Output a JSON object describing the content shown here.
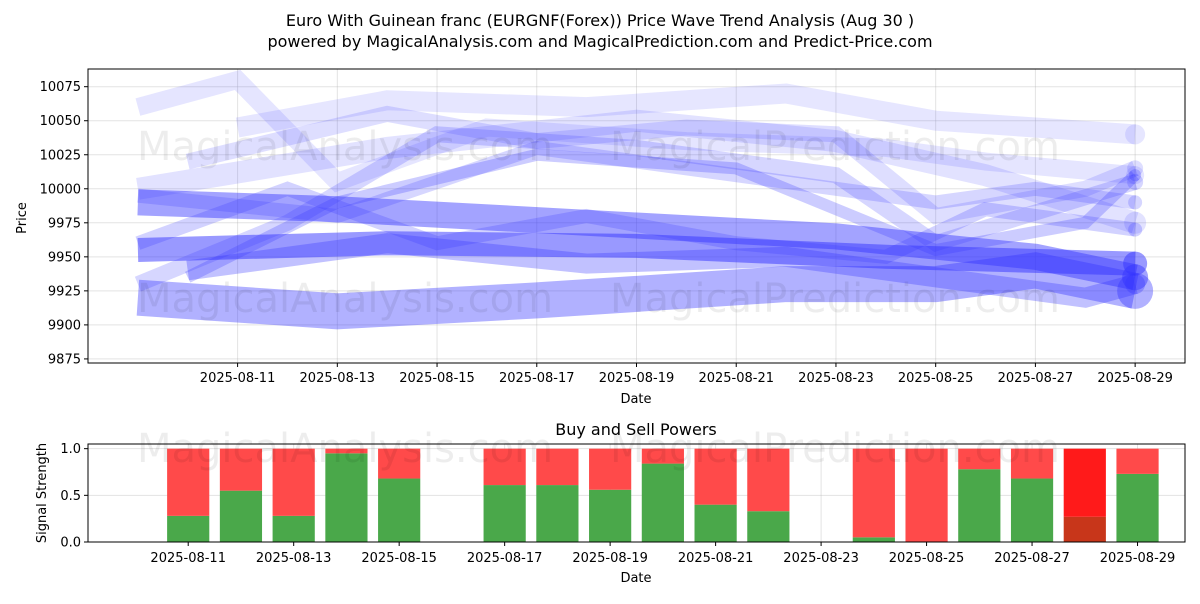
{
  "header": {
    "title_line1": "Euro With Guinean franc (EURGNF(Forex)) Price Wave Trend Analysis (Aug 30 )",
    "title_line2": "powered by MagicalAnalysis.com and MagicalPrediction.com and Predict-Price.com"
  },
  "watermarks": {
    "left": "MagicalAnalysis.com",
    "right": "MagicalPrediction.com"
  },
  "colors": {
    "wave": "#3333ff",
    "buy": "#4aa84a",
    "sell": "#ff4a4a",
    "sell_strong": "#ff1a1a",
    "buy_strong": "#c8361a"
  },
  "chart_data": [
    {
      "type": "line",
      "title": "",
      "xlabel": "Date",
      "ylabel": "Price",
      "x_ticks": [
        "2025-08-11",
        "2025-08-13",
        "2025-08-15",
        "2025-08-17",
        "2025-08-19",
        "2025-08-21",
        "2025-08-23",
        "2025-08-25",
        "2025-08-27",
        "2025-08-29"
      ],
      "y_ticks": [
        9875,
        9900,
        9925,
        9950,
        9975,
        10000,
        10025,
        10050,
        10075
      ],
      "xlim": [
        "2025-08-08",
        "2025-08-30"
      ],
      "ylim": [
        9872,
        10088
      ],
      "grid": true,
      "series": [
        {
          "x": [
            "2025-08-09",
            "2025-08-13",
            "2025-08-17",
            "2025-08-22",
            "2025-08-25",
            "2025-08-27",
            "2025-08-29"
          ],
          "y": [
            9920,
            9910,
            9918,
            9930,
            9930,
            9940,
            9925
          ],
          "opacity": 0.38,
          "width": 36
        },
        {
          "x": [
            "2025-08-09",
            "2025-08-14",
            "2025-08-19",
            "2025-08-24",
            "2025-08-29"
          ],
          "y": [
            9955,
            9960,
            9958,
            9950,
            9945
          ],
          "opacity": 0.5,
          "width": 24
        },
        {
          "x": [
            "2025-08-09",
            "2025-08-13",
            "2025-08-18",
            "2025-08-23",
            "2025-08-27",
            "2025-08-29"
          ],
          "y": [
            9990,
            9985,
            9975,
            9965,
            9950,
            9935
          ],
          "opacity": 0.45,
          "width": 26
        },
        {
          "x": [
            "2025-08-10",
            "2025-08-14",
            "2025-08-18",
            "2025-08-22",
            "2025-08-25",
            "2025-08-28",
            "2025-08-29"
          ],
          "y": [
            9940,
            9960,
            9945,
            9950,
            9935,
            9920,
            9930
          ],
          "opacity": 0.3,
          "width": 20
        },
        {
          "x": [
            "2025-08-09",
            "2025-08-12",
            "2025-08-15",
            "2025-08-19",
            "2025-08-23",
            "2025-08-25",
            "2025-08-29"
          ],
          "y": [
            9930,
            9975,
            10040,
            10030,
            10010,
            9960,
            10005
          ],
          "opacity": 0.2,
          "width": 16
        },
        {
          "x": [
            "2025-08-09",
            "2025-08-11",
            "2025-08-13",
            "2025-08-16",
            "2025-08-20",
            "2025-08-24",
            "2025-08-26",
            "2025-08-29"
          ],
          "y": [
            10060,
            10080,
            10005,
            10045,
            10035,
            10030,
            10020,
            10010
          ],
          "opacity": 0.13,
          "width": 18
        },
        {
          "x": [
            "2025-08-09",
            "2025-08-13",
            "2025-08-17",
            "2025-08-21",
            "2025-08-25",
            "2025-08-27",
            "2025-08-29"
          ],
          "y": [
            9995,
            9980,
            10030,
            10010,
            9990,
            10000,
            9990
          ],
          "opacity": 0.2,
          "width": 14
        },
        {
          "x": [
            "2025-08-10",
            "2025-08-14",
            "2025-08-17",
            "2025-08-20",
            "2025-08-23",
            "2025-08-25",
            "2025-08-28",
            "2025-08-29"
          ],
          "y": [
            10020,
            10055,
            10035,
            10045,
            10040,
            9980,
            10000,
            10015
          ],
          "opacity": 0.16,
          "width": 16
        },
        {
          "x": [
            "2025-08-09",
            "2025-08-12",
            "2025-08-15",
            "2025-08-18",
            "2025-08-21",
            "2025-08-24",
            "2025-08-26",
            "2025-08-29"
          ],
          "y": [
            9960,
            10000,
            9960,
            9980,
            9960,
            9950,
            9985,
            9970
          ],
          "opacity": 0.22,
          "width": 14
        },
        {
          "x": [
            "2025-08-10",
            "2025-08-13",
            "2025-08-17",
            "2025-08-21",
            "2025-08-25",
            "2025-08-28",
            "2025-08-29"
          ],
          "y": [
            9935,
            9990,
            10025,
            10015,
            9955,
            9975,
            10010
          ],
          "opacity": 0.25,
          "width": 12
        },
        {
          "x": [
            "2025-08-09",
            "2025-08-14",
            "2025-08-19",
            "2025-08-23",
            "2025-08-26",
            "2025-08-29"
          ],
          "y": [
            10000,
            10030,
            10050,
            10035,
            10010,
            9975
          ],
          "opacity": 0.14,
          "width": 22
        },
        {
          "x": [
            "2025-08-11",
            "2025-08-14",
            "2025-08-18",
            "2025-08-22",
            "2025-08-25",
            "2025-08-29"
          ],
          "y": [
            10045,
            10065,
            10060,
            10070,
            10050,
            10040
          ],
          "opacity": 0.12,
          "width": 20
        }
      ]
    },
    {
      "type": "bar",
      "title": "Buy and Sell Powers",
      "xlabel": "Date",
      "ylabel": "Signal Strength",
      "x_ticks": [
        "2025-08-11",
        "2025-08-13",
        "2025-08-15",
        "2025-08-17",
        "2025-08-19",
        "2025-08-21",
        "2025-08-23",
        "2025-08-25",
        "2025-08-27",
        "2025-08-29"
      ],
      "y_ticks": [
        "0.0",
        "0.5",
        "1.0"
      ],
      "ylim": [
        0,
        1.05
      ],
      "xlim": [
        "2025-08-09.1",
        "2025-08-29.9"
      ],
      "grid": true,
      "categories": [
        "2025-08-11",
        "2025-08-12",
        "2025-08-13",
        "2025-08-14",
        "2025-08-15",
        "2025-08-17",
        "2025-08-18",
        "2025-08-19",
        "2025-08-20",
        "2025-08-21",
        "2025-08-22",
        "2025-08-24",
        "2025-08-25",
        "2025-08-26",
        "2025-08-27",
        "2025-08-28",
        "2025-08-29"
      ],
      "series": [
        {
          "name": "Buy",
          "values": [
            0.28,
            0.55,
            0.28,
            0.95,
            0.68,
            0.61,
            0.61,
            0.56,
            0.84,
            0.4,
            0.33,
            0.05,
            0.0,
            0.78,
            0.68,
            0.27,
            0.73
          ]
        },
        {
          "name": "Sell",
          "values": [
            0.72,
            0.45,
            0.72,
            0.05,
            0.32,
            0.39,
            0.39,
            0.44,
            0.16,
            0.6,
            0.67,
            0.95,
            1.0,
            0.22,
            0.32,
            0.73,
            0.27
          ]
        }
      ],
      "strong_day": "2025-08-28"
    }
  ]
}
